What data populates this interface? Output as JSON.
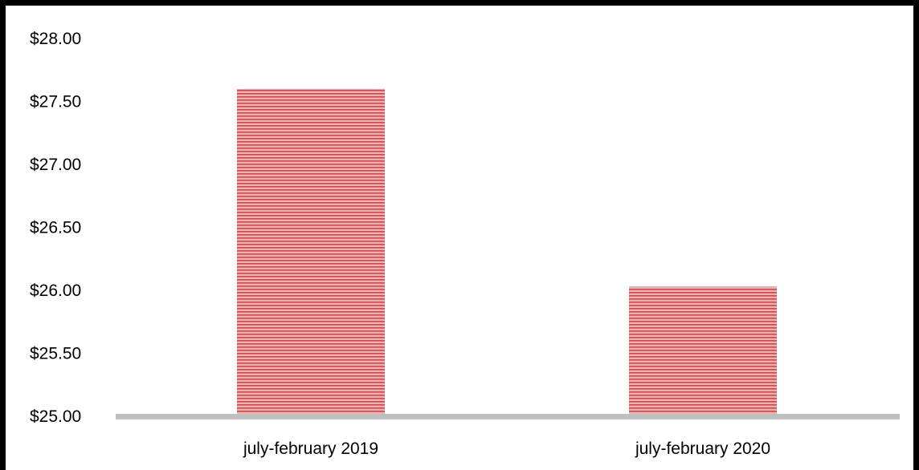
{
  "chart_data": {
    "type": "bar",
    "title": "",
    "xlabel": "",
    "ylabel": "",
    "categories": [
      "july-february 2019",
      "july-february 2020"
    ],
    "values": [
      27.6,
      26.03
    ],
    "ylim": [
      25.0,
      28.0
    ],
    "yticks": [
      25.0,
      25.5,
      26.0,
      26.5,
      27.0,
      27.5,
      28.0
    ],
    "ytick_labels": [
      "$25.00",
      "$25.50",
      "$26.00",
      "$26.50",
      "$27.00",
      "$27.50",
      "$28.00"
    ],
    "grid": false,
    "legend": "none",
    "colors": {
      "bar_fill": "#e8a3a5",
      "bar_stripe": "#c9474d",
      "axis_line": "#bfbfbf",
      "frame": "#000000"
    }
  }
}
